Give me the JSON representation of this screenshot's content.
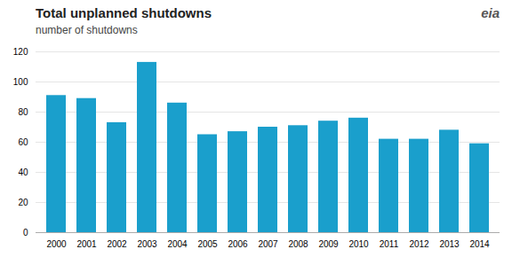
{
  "chart_data": {
    "type": "bar",
    "title": "Total unplanned shutdowns",
    "subtitle": "number of shutdowns",
    "annotations": [
      "eia"
    ],
    "categories": [
      "2000",
      "2001",
      "2002",
      "2003",
      "2004",
      "2005",
      "2006",
      "2007",
      "2008",
      "2009",
      "2010",
      "2011",
      "2012",
      "2013",
      "2014"
    ],
    "values": [
      91,
      89,
      73,
      113,
      86,
      65,
      67,
      70,
      71,
      74,
      76,
      62,
      62,
      68,
      59
    ],
    "color": "#1a9fcc",
    "ylim": [
      0,
      120
    ],
    "yticks": [
      0,
      20,
      40,
      60,
      80,
      100,
      120
    ],
    "grid": true
  }
}
